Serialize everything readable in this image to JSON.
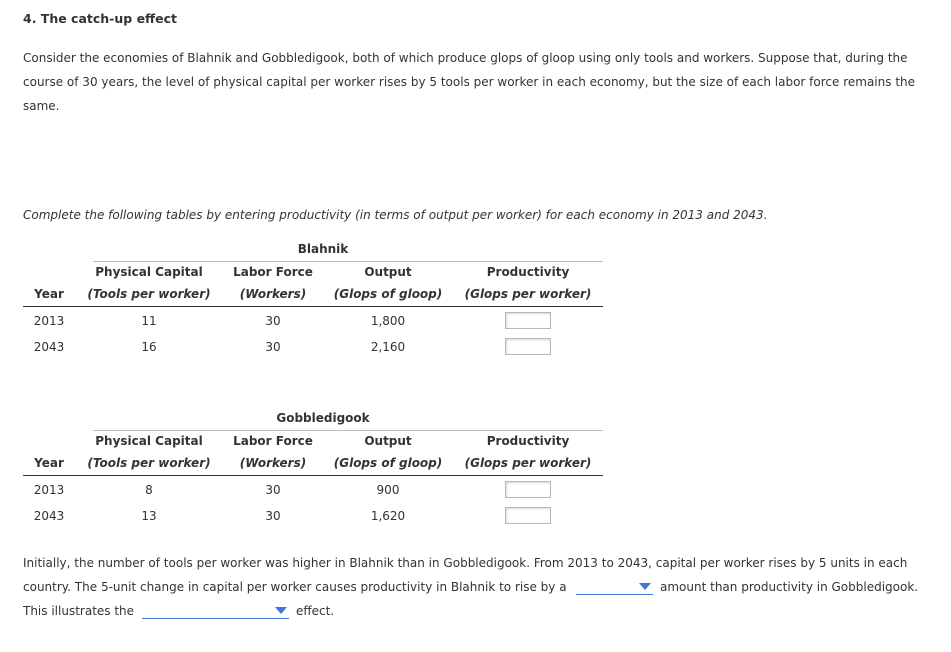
{
  "question": {
    "title": "4. The catch-up effect",
    "intro_line1": "Consider the economies of Blahnik and Gobbledigook, both of which produce glops of gloop using only tools and workers. Suppose that, during the",
    "intro_line2": "course of 30 years, the level of physical capital per worker rises by 5 tools per worker in each economy, but the size of each labor force remains the",
    "intro_line3": "same.",
    "instruction": "Complete the following tables by entering productivity (in terms of output per worker) for each economy in 2013 and 2043."
  },
  "tables": [
    {
      "title": "Blahnik",
      "headers": {
        "year": "Year",
        "capital_top": "Physical Capital",
        "capital_unit": "(Tools per worker)",
        "labor_top": "Labor Force",
        "labor_unit": "(Workers)",
        "output_top": "Output",
        "output_unit": "(Glops of gloop)",
        "prod_top": "Productivity",
        "prod_unit": "(Glops per worker)"
      },
      "rows": [
        {
          "year": "2013",
          "capital": "11",
          "labor": "30",
          "output": "1,800",
          "productivity": ""
        },
        {
          "year": "2043",
          "capital": "16",
          "labor": "30",
          "output": "2,160",
          "productivity": ""
        }
      ]
    },
    {
      "title": "Gobbledigook",
      "headers": {
        "year": "Year",
        "capital_top": "Physical Capital",
        "capital_unit": "(Tools per worker)",
        "labor_top": "Labor Force",
        "labor_unit": "(Workers)",
        "output_top": "Output",
        "output_unit": "(Glops of gloop)",
        "prod_top": "Productivity",
        "prod_unit": "(Glops per worker)"
      },
      "rows": [
        {
          "year": "2013",
          "capital": "8",
          "labor": "30",
          "output": "900",
          "productivity": ""
        },
        {
          "year": "2043",
          "capital": "13",
          "labor": "30",
          "output": "1,620",
          "productivity": ""
        }
      ]
    }
  ],
  "closing": {
    "line1": "Initially, the number of tools per worker was higher in Blahnik than in Gobbledigook. From 2013 to 2043, capital per worker rises by 5 units in each",
    "line2_before": "country. The 5-unit change in capital per worker causes productivity in Blahnik to rise by a",
    "line2_after": "amount than productivity in Gobbledigook.",
    "line3_before": "This illustrates the",
    "line3_after": "effect.",
    "dropdown1_value": "",
    "dropdown2_value": ""
  },
  "colors": {
    "accent": "#3a7bd5",
    "text": "#333333"
  }
}
